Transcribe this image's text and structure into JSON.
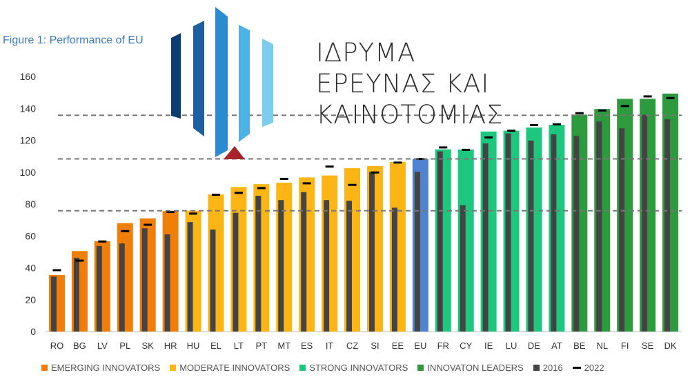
{
  "title": "Figure 1: Performance of EU",
  "logo": {
    "lines": [
      "ΙΔΡΥΜΑ",
      "ΕΡΕΥΝΑΣ ΚΑΙ",
      "ΚΑΙΝΟΤΟΜΙΑΣ"
    ],
    "colors": [
      "#0d3c6e",
      "#1d5fa0",
      "#2a8bcf",
      "#4cb2e3",
      "#7ccdee"
    ],
    "accent": "#a8232a"
  },
  "legend": [
    {
      "label": "EMERGING INNOVATORS",
      "color": "#f07f0a",
      "kind": "box"
    },
    {
      "label": "MODERATE INNOVATORS",
      "color": "#fbb616",
      "kind": "box"
    },
    {
      "label": "STRONG INNOVATORS",
      "color": "#1ec77e",
      "kind": "box"
    },
    {
      "label": "INNOVATON LEADERS",
      "color": "#2d9a3e",
      "kind": "box"
    },
    {
      "label": "2016",
      "color": "#444444",
      "kind": "box"
    },
    {
      "label": "2022",
      "color": "#000000",
      "kind": "line"
    }
  ],
  "chart_data": {
    "type": "bar",
    "title": "Figure 1: Performance of EU",
    "ylim": [
      0,
      160
    ],
    "yticks": [
      0,
      20,
      40,
      60,
      80,
      100,
      120,
      140,
      160
    ],
    "grid": false,
    "reference_lines": [
      75.8,
      108.3,
      135.7
    ],
    "legend_position": "bottom",
    "categories": [
      "RO",
      "BG",
      "LV",
      "PL",
      "SK",
      "HR",
      "HU",
      "EL",
      "LT",
      "PT",
      "MT",
      "ES",
      "IT",
      "CZ",
      "SI",
      "EE",
      "EU",
      "FR",
      "CY",
      "IE",
      "LU",
      "DE",
      "AT",
      "BE",
      "NL",
      "FI",
      "SE",
      "DK"
    ],
    "groups": [
      "emerging",
      "emerging",
      "emerging",
      "emerging",
      "emerging",
      "emerging",
      "moderate",
      "moderate",
      "moderate",
      "moderate",
      "moderate",
      "moderate",
      "moderate",
      "moderate",
      "moderate",
      "moderate",
      "eu",
      "strong",
      "strong",
      "strong",
      "strong",
      "strong",
      "strong",
      "leader",
      "leader",
      "leader",
      "leader",
      "leader"
    ],
    "group_colors": {
      "emerging": "#f07f0a",
      "moderate": "#fbb616",
      "eu": "#4f83cf",
      "strong": "#1ec77e",
      "leader": "#2d9a3e"
    },
    "series": [
      {
        "name": "Performance",
        "values": [
          35.5,
          50.5,
          56.7,
          68.0,
          71.0,
          75.6,
          75.8,
          86.0,
          90.7,
          92.5,
          93.4,
          96.7,
          97.9,
          102.5,
          103.8,
          106.4,
          108.3,
          114.3,
          114.2,
          125.5,
          126.0,
          128.0,
          129.7,
          136.1,
          139.6,
          146.0,
          146.0,
          149.3
        ]
      },
      {
        "name": "2016",
        "values": [
          34.5,
          46.3,
          53.7,
          55.3,
          64.8,
          61.0,
          68.7,
          64.0,
          74.5,
          85.2,
          82.5,
          87.5,
          82.5,
          82.0,
          100.2,
          77.7,
          100.2,
          113.0,
          79.3,
          118.0,
          124.3,
          119.8,
          123.8,
          122.7,
          131.8,
          127.5,
          136.0,
          133.3
        ]
      },
      {
        "name": "2022",
        "values": [
          38.5,
          44.5,
          56.5,
          63.0,
          67.0,
          75.0,
          74.0,
          85.8,
          87.0,
          90.0,
          95.8,
          93.0,
          103.5,
          92.0,
          99.8,
          106.0,
          108.3,
          115.5,
          114.0,
          121.8,
          126.0,
          129.5,
          130.0,
          137.0,
          138.7,
          141.5,
          147.5,
          146.5
        ]
      }
    ]
  }
}
